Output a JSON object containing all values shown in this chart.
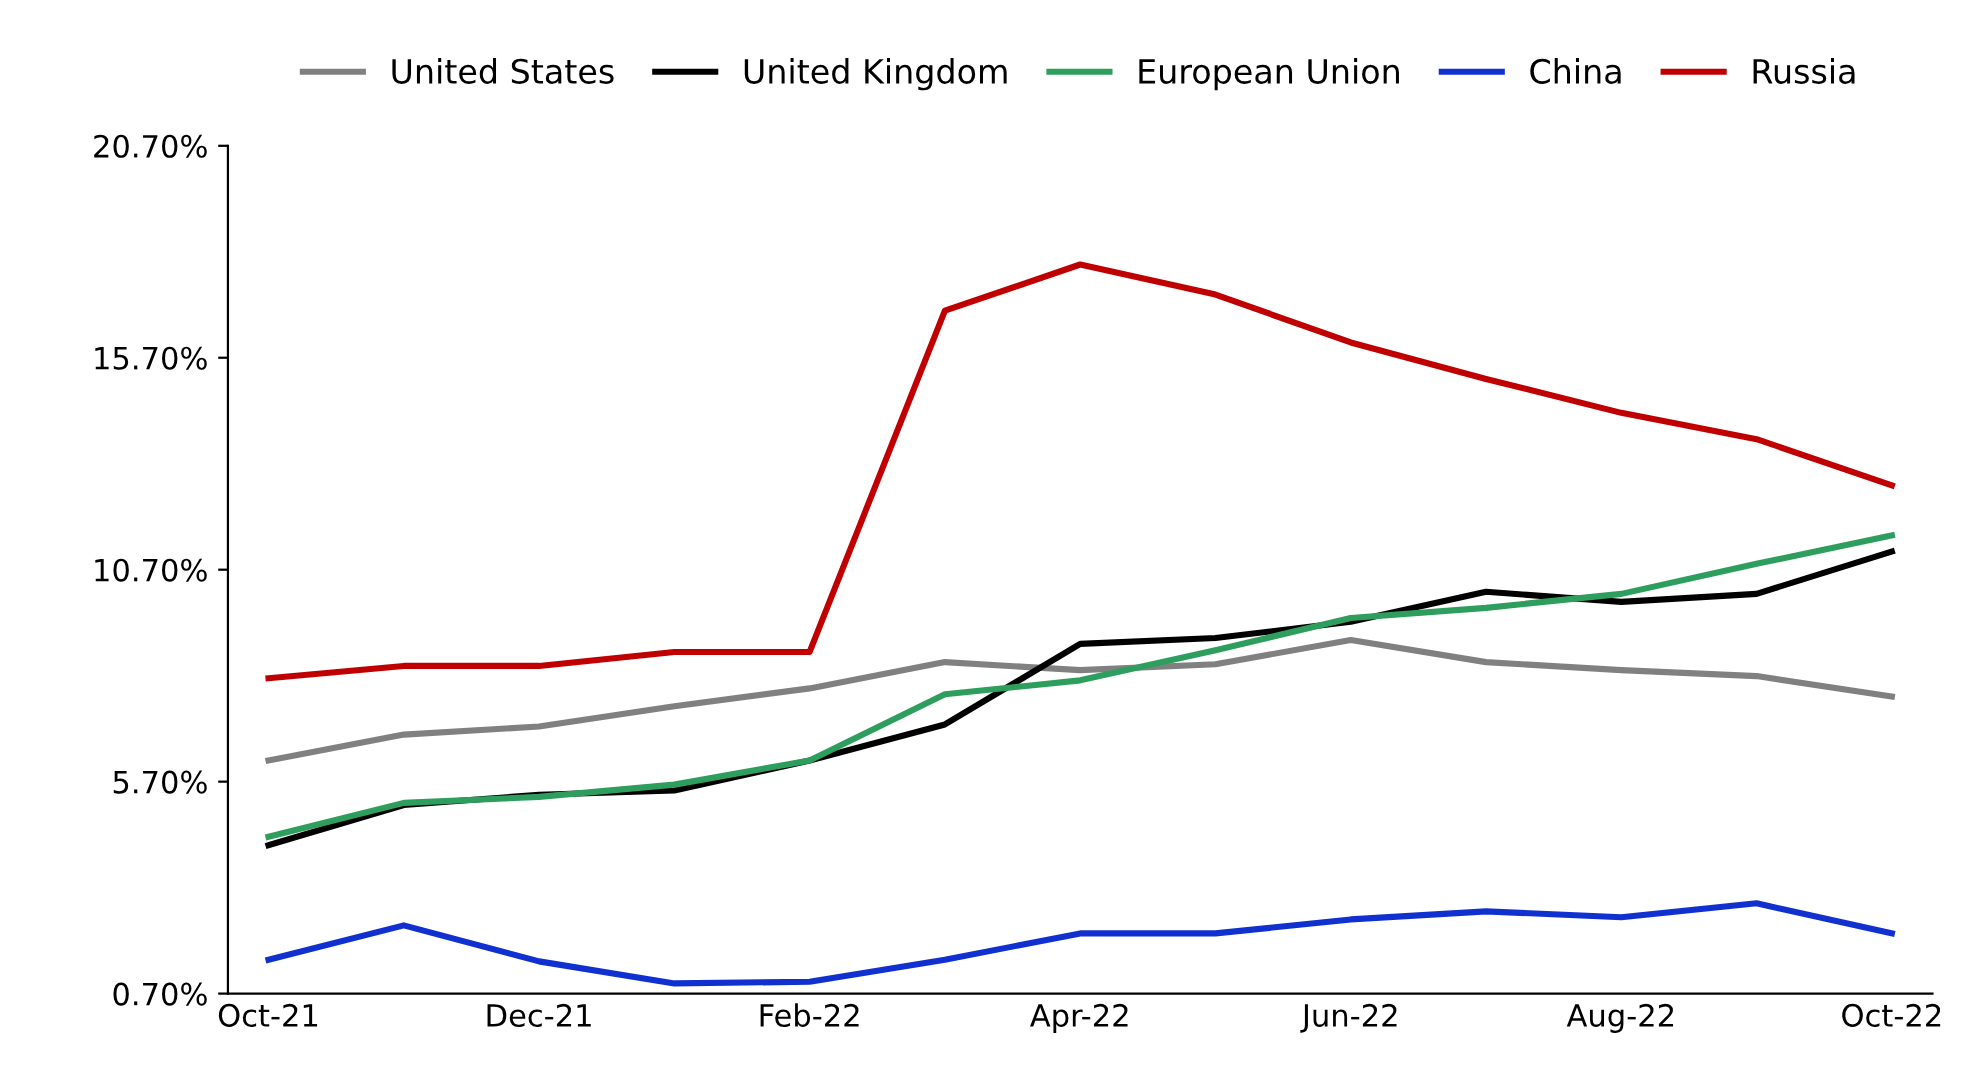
{
  "chart_data": {
    "type": "line",
    "categories": [
      "Oct-21",
      null,
      "Dec-21",
      null,
      "Feb-22",
      null,
      "Apr-22",
      null,
      "Jun-22",
      null,
      "Aug-22",
      null,
      "Oct-22"
    ],
    "series": [
      {
        "name": "United States",
        "color": "#808080",
        "values": [
          6.2,
          6.81,
          7.0,
          7.48,
          7.9,
          8.52,
          8.33,
          8.47,
          9.04,
          8.52,
          8.33,
          8.19,
          7.71
        ]
      },
      {
        "name": "United Kingdom",
        "color": "#000000",
        "values": [
          4.2,
          5.15,
          5.39,
          5.49,
          6.2,
          7.05,
          8.95,
          9.09,
          9.47,
          10.18,
          9.94,
          10.13,
          11.13
        ]
      },
      {
        "name": "European Union",
        "color": "#2e9e5e",
        "values": [
          4.4,
          5.2,
          5.34,
          5.63,
          6.2,
          7.76,
          8.09,
          8.8,
          9.56,
          9.8,
          10.13,
          10.84,
          11.51
        ]
      },
      {
        "name": "China",
        "color": "#1030d0",
        "values": [
          1.5,
          2.31,
          1.46,
          0.94,
          0.98,
          1.5,
          2.12,
          2.12,
          2.45,
          2.64,
          2.5,
          2.83,
          2.12
        ]
      },
      {
        "name": "Russia",
        "color": "#c00000",
        "values": [
          8.14,
          8.43,
          8.43,
          8.76,
          8.76,
          16.81,
          17.9,
          17.19,
          16.06,
          15.2,
          14.4,
          13.78,
          12.69
        ]
      }
    ],
    "ylim": [
      0.7,
      20.7
    ],
    "yticks": [
      {
        "value": 0.7,
        "label": "0.70%"
      },
      {
        "value": 5.7,
        "label": "5.70%"
      },
      {
        "value": 10.7,
        "label": "10.70%"
      },
      {
        "value": 15.7,
        "label": "15.70%"
      },
      {
        "value": 20.7,
        "label": "20.70%"
      }
    ],
    "grid": false,
    "legend": "top",
    "marker": "none",
    "line_style": "solid"
  }
}
